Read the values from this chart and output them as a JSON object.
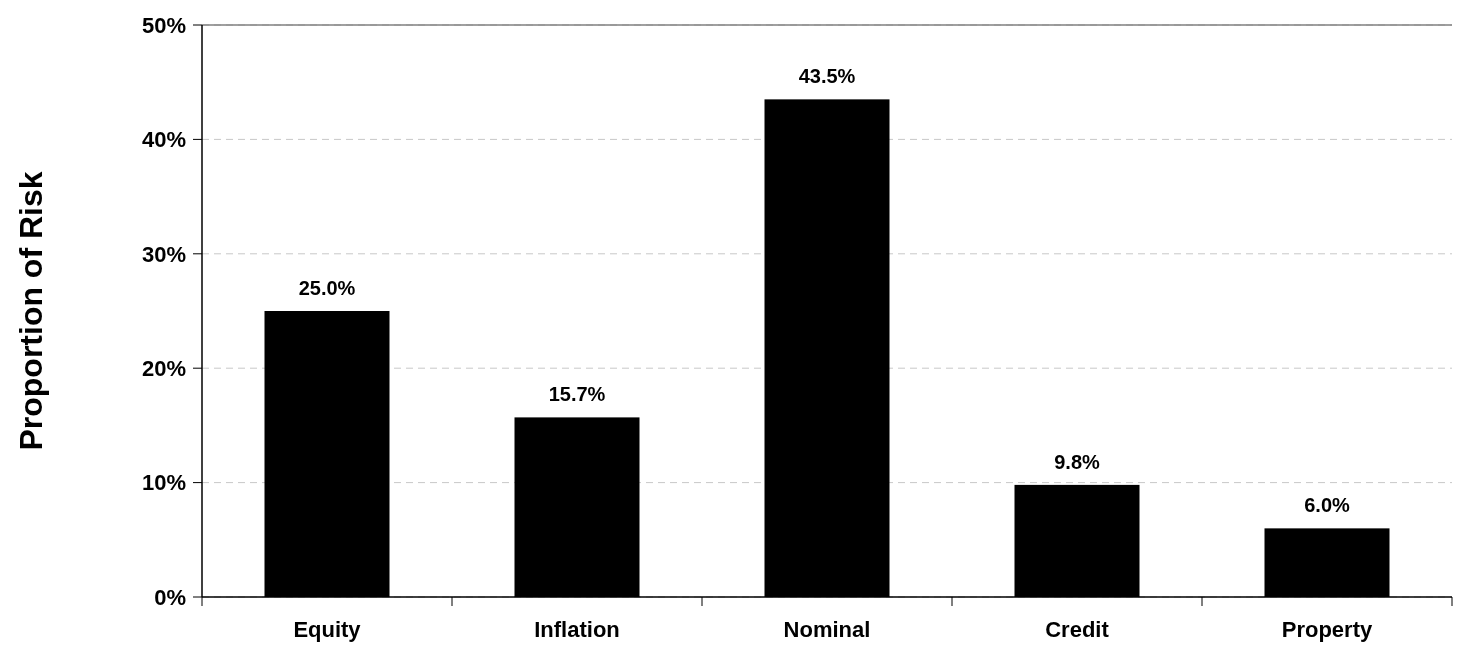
{
  "chart_data": {
    "type": "bar",
    "ylabel": "Proportion of Risk",
    "categories": [
      "Equity",
      "Inflation",
      "Nominal",
      "Credit",
      "Property"
    ],
    "values": [
      25.0,
      15.7,
      43.5,
      9.8,
      6.0
    ],
    "value_labels": [
      "25.0%",
      "15.7%",
      "43.5%",
      "9.8%",
      "6.0%"
    ],
    "color": "#000000",
    "ylim": [
      0,
      50
    ],
    "yticks": [
      {
        "value": 0,
        "label": "0%"
      },
      {
        "value": 10,
        "label": "10%"
      },
      {
        "value": 20,
        "label": "20%"
      },
      {
        "value": 30,
        "label": "30%"
      },
      {
        "value": 40,
        "label": "40%"
      },
      {
        "value": 50,
        "label": "50%"
      }
    ],
    "grid": "y"
  }
}
